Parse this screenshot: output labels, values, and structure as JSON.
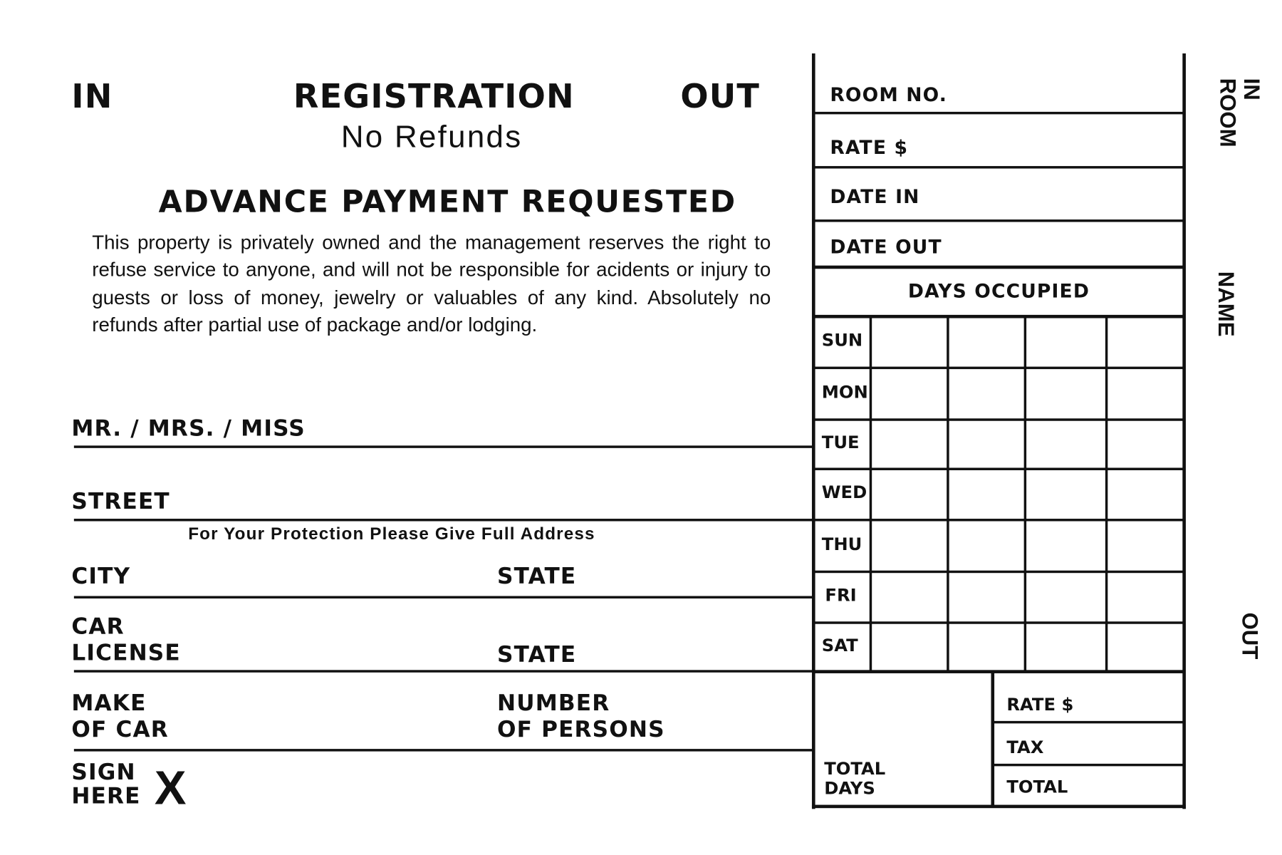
{
  "header": {
    "in": "IN",
    "title": "REGISTRATION",
    "out": "OUT",
    "subtitle": "No Refunds"
  },
  "notice": {
    "heading": "ADVANCE PAYMENT REQUESTED",
    "text": "This property is privately owned and the management reserves the right to refuse service to anyone, and will not be responsible for acidents or injury to guests or loss of money, jewelry or valuables of any kind. Absolutely no refunds after partial use of package and/or lodging."
  },
  "fields": {
    "name": "MR. / MRS. / MISS",
    "street": "STREET",
    "street_note": "For Your Protection Please Give Full Address",
    "city": "CITY",
    "state": "STATE",
    "car_license_1": "CAR",
    "car_license_2": "LICENSE",
    "car_state": "STATE",
    "make_1": "MAKE",
    "make_2": "OF CAR",
    "persons_1": "NUMBER",
    "persons_2": "OF PERSONS",
    "sign_1": "SIGN",
    "sign_2": "HERE",
    "sign_mark": "X"
  },
  "table": {
    "room_no": "ROOM NO.",
    "rate": "RATE $",
    "date_in": "DATE IN",
    "date_out": "DATE OUT",
    "days_occupied": "DAYS OCCUPIED",
    "days": [
      "SUN",
      "MON",
      "TUE",
      "WED",
      "THU",
      "FRI",
      "SAT"
    ],
    "total_days_1": "TOTAL",
    "total_days_2": "DAYS",
    "rate2": "RATE $",
    "tax": "TAX",
    "total": "TOTAL"
  },
  "stub": {
    "in_room": "IN\nROOM",
    "name": "NAME",
    "out": "OUT"
  }
}
